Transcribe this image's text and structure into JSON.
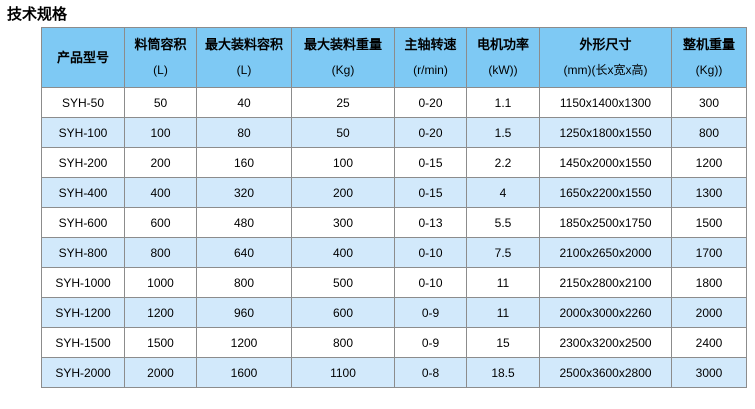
{
  "page": {
    "title": "技术规格"
  },
  "table": {
    "columns": [
      {
        "label": "产品型号",
        "unit": ""
      },
      {
        "label": "料筒容积",
        "unit": "(L)"
      },
      {
        "label": "最大装料容积",
        "unit": "(L)"
      },
      {
        "label": "最大装料重量",
        "unit": "(Kg)"
      },
      {
        "label": "主轴转速",
        "unit": "(r/min)"
      },
      {
        "label": "电机功率",
        "unit": "(kW))"
      },
      {
        "label": "外形尺寸",
        "unit": "(mm)(长x宽x高)"
      },
      {
        "label": "整机重量",
        "unit": "(Kg))"
      }
    ],
    "rows": [
      [
        "SYH-50",
        "50",
        "40",
        "25",
        "0-20",
        "1.1",
        "1150x1400x1300",
        "300"
      ],
      [
        "SYH-100",
        "100",
        "80",
        "50",
        "0-20",
        "1.5",
        "1250x1800x1550",
        "800"
      ],
      [
        "SYH-200",
        "200",
        "160",
        "100",
        "0-15",
        "2.2",
        "1450x2000x1550",
        "1200"
      ],
      [
        "SYH-400",
        "400",
        "320",
        "200",
        "0-15",
        "4",
        "1650x2200x1550",
        "1300"
      ],
      [
        "SYH-600",
        "600",
        "480",
        "300",
        "0-13",
        "5.5",
        "1850x2500x1750",
        "1500"
      ],
      [
        "SYH-800",
        "800",
        "640",
        "400",
        "0-10",
        "7.5",
        "2100x2650x2000",
        "1700"
      ],
      [
        "SYH-1000",
        "1000",
        "800",
        "500",
        "0-10",
        "11",
        "2150x2800x2100",
        "1800"
      ],
      [
        "SYH-1200",
        "1200",
        "960",
        "600",
        "0-9",
        "11",
        "2000x3000x2260",
        "2000"
      ],
      [
        "SYH-1500",
        "1500",
        "1200",
        "800",
        "0-9",
        "15",
        "2300x3200x2500",
        "2400"
      ],
      [
        "SYH-2000",
        "2000",
        "1600",
        "1100",
        "0-8",
        "18.5",
        "2500x3600x2800",
        "3000"
      ]
    ],
    "colors": {
      "header_bg": "#7EC9F4",
      "stripe_bg": "#D2E9FB",
      "border": "#8C8C8C",
      "text": "#000000"
    }
  }
}
